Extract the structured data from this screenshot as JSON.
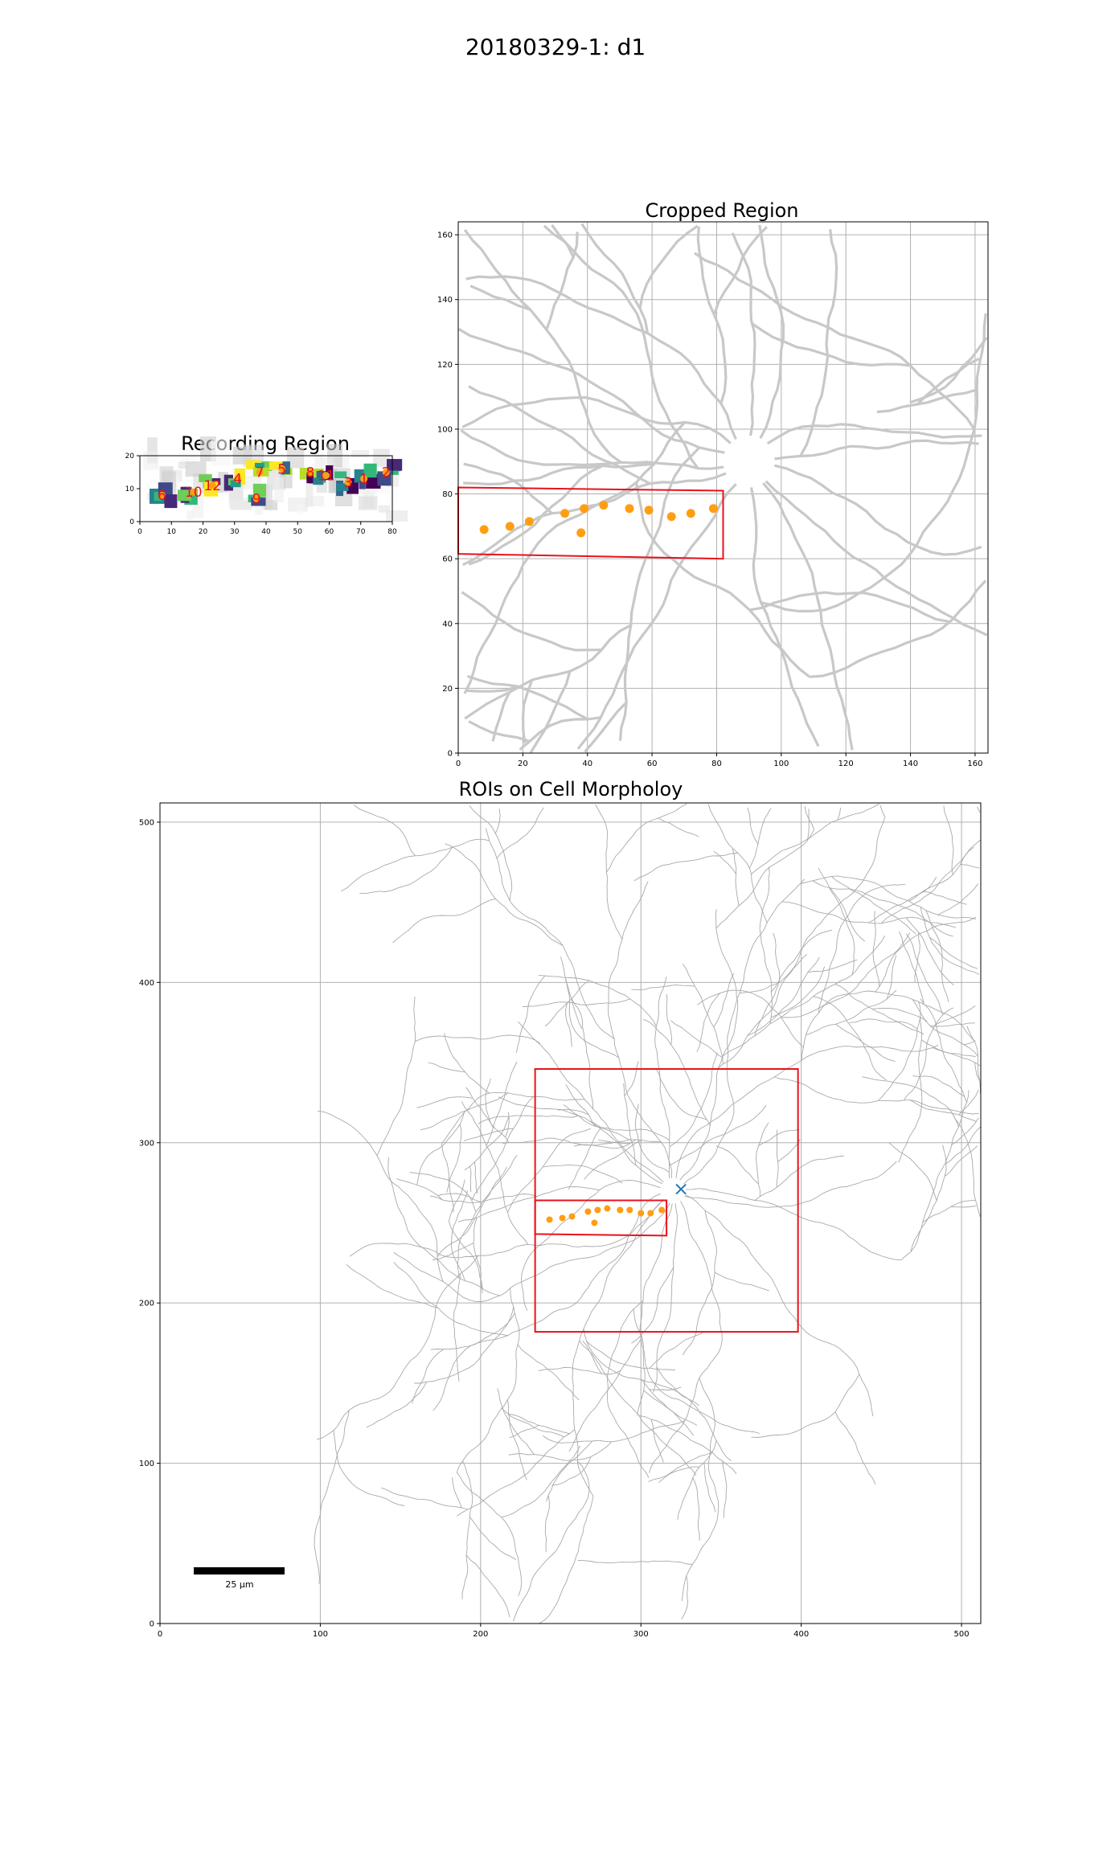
{
  "figure": {
    "title": "20180329-1: d1"
  },
  "colors": {
    "axis": "#000000",
    "grid": "#b0b0b0",
    "roi": "#ff9e12",
    "box": "#e8121c",
    "label": "#e8121c",
    "soma": "#1f77b4",
    "neuron": "#bdbdbd"
  },
  "chart_data": [
    {
      "id": "recording",
      "type": "heatmap",
      "title": "Recording Region",
      "xlim": [
        0,
        80
      ],
      "ylim": [
        0,
        20
      ],
      "xticks": [
        0,
        10,
        20,
        30,
        40,
        50,
        60,
        70,
        80
      ],
      "yticks": [
        0,
        10,
        20
      ],
      "grid": false,
      "roi_points": [
        {
          "label": "6",
          "x": 7,
          "y": 8
        },
        {
          "label": "10",
          "x": 17,
          "y": 9
        },
        {
          "label": "12",
          "x": 23,
          "y": 11
        },
        {
          "label": "4",
          "x": 31,
          "y": 13
        },
        {
          "label": "7",
          "x": 38,
          "y": 15
        },
        {
          "label": "5",
          "x": 45,
          "y": 16
        },
        {
          "label": "8",
          "x": 54,
          "y": 15
        },
        {
          "label": "11",
          "x": 59,
          "y": 14
        },
        {
          "label": "3",
          "x": 66,
          "y": 12
        },
        {
          "label": "1",
          "x": 71,
          "y": 13
        },
        {
          "label": "2",
          "x": 78,
          "y": 15
        },
        {
          "label": "9",
          "x": 37,
          "y": 7
        }
      ]
    },
    {
      "id": "cropped",
      "type": "scatter",
      "title": "Cropped Region",
      "xlim": [
        0,
        164
      ],
      "ylim": [
        0,
        164
      ],
      "xticks": [
        0,
        20,
        40,
        60,
        80,
        100,
        120,
        140,
        160
      ],
      "yticks": [
        0,
        20,
        40,
        60,
        80,
        100,
        120,
        140,
        160
      ],
      "grid": true,
      "roi_points": [
        {
          "x": 8,
          "y": 69
        },
        {
          "x": 16,
          "y": 70
        },
        {
          "x": 22,
          "y": 71.5
        },
        {
          "x": 33,
          "y": 74
        },
        {
          "x": 39,
          "y": 75.5
        },
        {
          "x": 45,
          "y": 76.5
        },
        {
          "x": 53,
          "y": 75.5
        },
        {
          "x": 59,
          "y": 75
        },
        {
          "x": 66,
          "y": 73
        },
        {
          "x": 72,
          "y": 74
        },
        {
          "x": 79,
          "y": 75.5
        },
        {
          "x": 38,
          "y": 68
        }
      ],
      "recording_box": [
        [
          0,
          82
        ],
        [
          82,
          81
        ],
        [
          82,
          60
        ],
        [
          0,
          61.5
        ]
      ]
    },
    {
      "id": "morphology",
      "type": "scatter",
      "title": "ROIs on Cell Morpholoy",
      "xlim": [
        0,
        512
      ],
      "ylim": [
        0,
        512
      ],
      "xticks": [
        0,
        100,
        200,
        300,
        400,
        500
      ],
      "yticks": [
        0,
        100,
        200,
        300,
        400,
        500
      ],
      "grid": true,
      "roi_points": [
        {
          "x": 243,
          "y": 252
        },
        {
          "x": 251,
          "y": 253
        },
        {
          "x": 257,
          "y": 254
        },
        {
          "x": 267,
          "y": 257
        },
        {
          "x": 273,
          "y": 258
        },
        {
          "x": 279,
          "y": 259
        },
        {
          "x": 287,
          "y": 258
        },
        {
          "x": 293,
          "y": 258
        },
        {
          "x": 300,
          "y": 256
        },
        {
          "x": 306,
          "y": 256
        },
        {
          "x": 313,
          "y": 258
        },
        {
          "x": 271,
          "y": 250
        }
      ],
      "crop_box": {
        "x0": 234,
        "x1": 398,
        "y0": 182,
        "y1": 346
      },
      "recording_box": [
        [
          234,
          264
        ],
        [
          316,
          264
        ],
        [
          316,
          242
        ],
        [
          234,
          243
        ]
      ],
      "soma": {
        "x": 325,
        "y": 271
      },
      "scalebar_label": "25 µm",
      "scalebar_um": 25
    }
  ]
}
